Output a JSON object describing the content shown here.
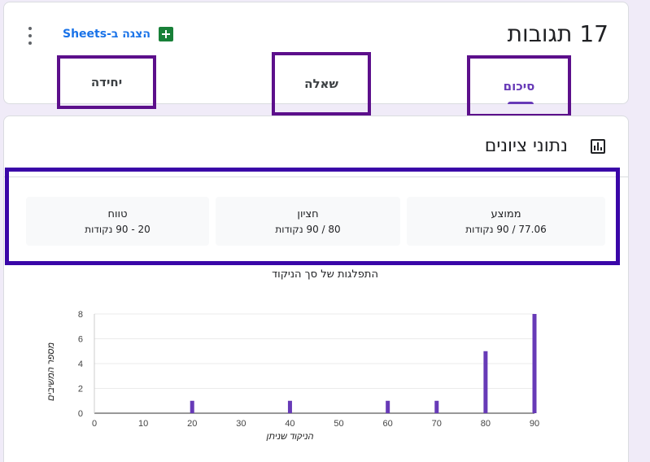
{
  "header": {
    "responses_title": "17 תגובות",
    "sheets_label": "הצגה ב-Sheets",
    "tabs": [
      {
        "label": "סיכום",
        "active": true
      },
      {
        "label": "שאלה",
        "active": false
      },
      {
        "label": "יחידה",
        "active": false
      }
    ]
  },
  "insights": {
    "title": "נתוני ציונים",
    "stats": {
      "average": {
        "title": "ממוצע",
        "value": "77.06 / 90 נקודות"
      },
      "median": {
        "title": "חציון",
        "value": "80 / 90 נקודות"
      },
      "range": {
        "title": "טווח",
        "value": "20 - 90 נקודות"
      }
    }
  },
  "colors": {
    "accent": "#673ab7",
    "bar": "#673ab7",
    "highlight_tabs": "#5c0f8b",
    "highlight_stats": "#3a06a8"
  },
  "chart_data": {
    "type": "bar",
    "title": "התפלגות של סך הניקוד",
    "xlabel": "הניקוד שניתן",
    "ylabel": "מספר המשיבים",
    "xlim": [
      0,
      90
    ],
    "ylim": [
      0,
      8
    ],
    "xticks": [
      0,
      10,
      20,
      30,
      40,
      50,
      60,
      70,
      80,
      90
    ],
    "yticks": [
      0,
      2,
      4,
      6,
      8
    ],
    "x": [
      20,
      40,
      60,
      70,
      80,
      90
    ],
    "values": [
      1,
      1,
      1,
      1,
      5,
      8
    ],
    "grid": true
  }
}
